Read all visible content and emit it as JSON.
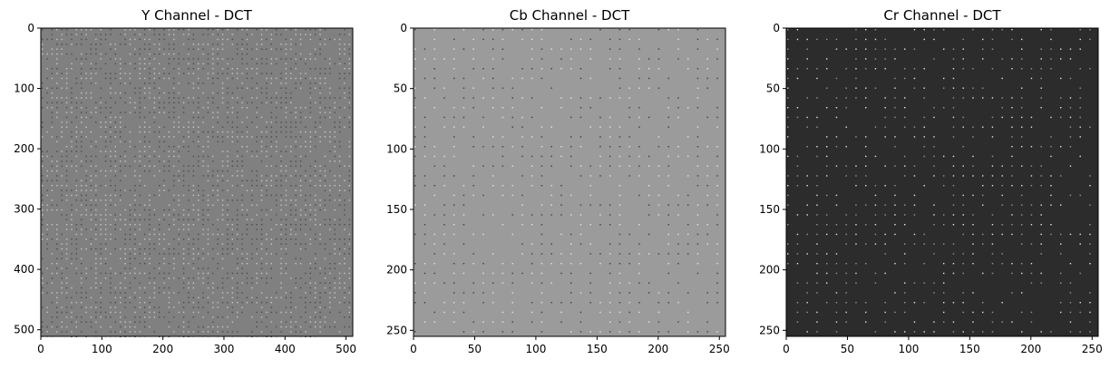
{
  "chart_data": [
    {
      "type": "heatmap",
      "title": "Y Channel - DCT",
      "xlabel": "",
      "ylabel": "",
      "xlim": [
        0,
        511
      ],
      "ylim": [
        511,
        0
      ],
      "grid": false,
      "x_ticks": [
        0,
        100,
        200,
        300,
        400,
        500
      ],
      "y_ticks": [
        0,
        100,
        200,
        300,
        400,
        500
      ],
      "block_size": 8,
      "background_color": "#808080",
      "dot_colors": [
        "#4a4a4a",
        "#c8c8c8"
      ]
    },
    {
      "type": "heatmap",
      "title": "Cb Channel - DCT",
      "xlabel": "",
      "ylabel": "",
      "xlim": [
        0,
        255
      ],
      "ylim": [
        255,
        0
      ],
      "grid": false,
      "x_ticks": [
        0,
        50,
        100,
        150,
        200,
        250
      ],
      "y_ticks": [
        0,
        50,
        100,
        150,
        200,
        250
      ],
      "block_size": 8,
      "background_color": "#9b9b9b",
      "dot_colors": [
        "#3c3c3c",
        "#e6e6e6"
      ]
    },
    {
      "type": "heatmap",
      "title": "Cr Channel - DCT",
      "xlabel": "",
      "ylabel": "",
      "xlim": [
        0,
        255
      ],
      "ylim": [
        255,
        0
      ],
      "grid": false,
      "x_ticks": [
        0,
        50,
        100,
        150,
        200,
        250
      ],
      "y_ticks": [
        0,
        50,
        100,
        150,
        200,
        250
      ],
      "block_size": 8,
      "background_color": "#2c2c2c",
      "dot_colors": [
        "#e8e8e8",
        "#9a9a9a"
      ]
    }
  ]
}
